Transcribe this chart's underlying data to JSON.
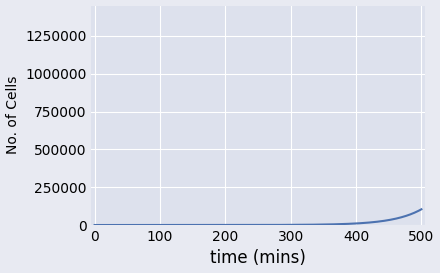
{
  "title": "",
  "xlabel": "time (mins)",
  "ylabel": "No. of Cells",
  "x_start": 0,
  "x_end": 500,
  "xlim": [
    -5,
    505
  ],
  "ylim": [
    0,
    1450000
  ],
  "yticks": [
    0,
    250000,
    500000,
    750000,
    1000000,
    1250000
  ],
  "xticks": [
    0,
    100,
    200,
    300,
    400,
    500
  ],
  "line_color": "#4c72b0",
  "axes_background_color": "#dde1ed",
  "fig_background_color": "#e8eaf2",
  "grid_color": "#ffffff",
  "initial_cells": 1,
  "doubling_time": 30,
  "line_width": 1.5,
  "xlabel_fontsize": 12,
  "ylabel_fontsize": 10,
  "tick_fontsize": 10
}
